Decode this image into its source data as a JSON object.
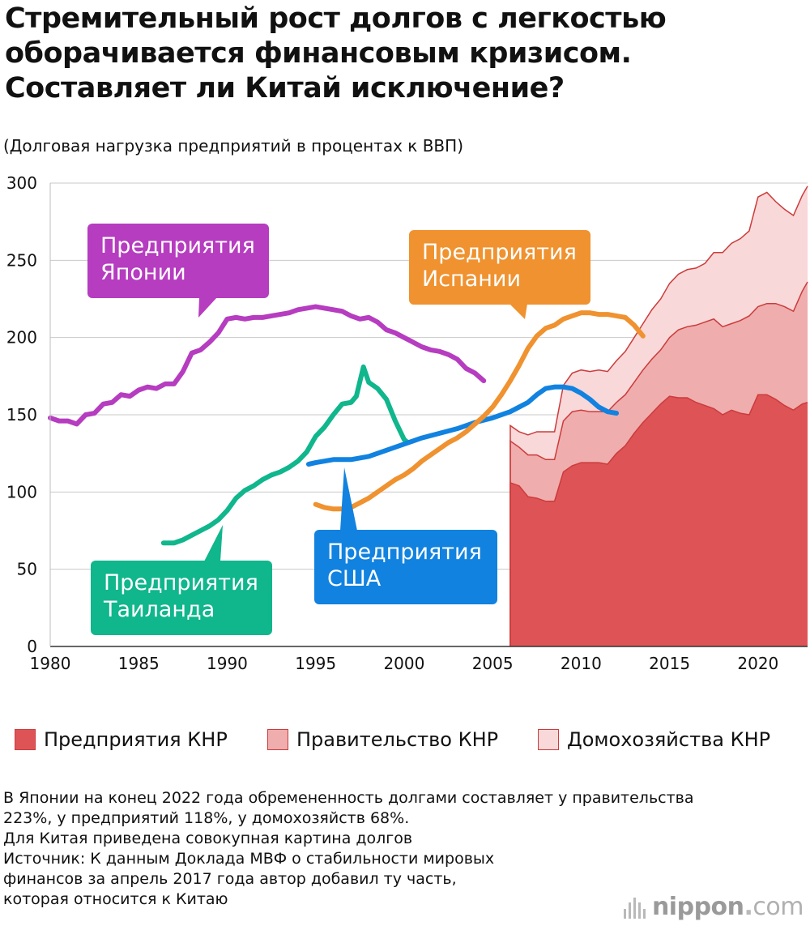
{
  "header": {
    "title_lines": [
      "Стремительный рост долгов с легкостью",
      "оборачивается финансовым кризисом.",
      "Составляет ли Китай исключение?"
    ],
    "subtitle": "(Долговая нагрузка предприятий в процентах к ВВП)"
  },
  "chart_data": {
    "type": "line",
    "title": "Стремительный рост долгов с легкостью оборачивается финансовым кризисом. Составляет ли Китай исключение?",
    "ylabel": "(Долговая нагрузка предприятий в процентах к ВВП)",
    "xlabel": "",
    "xlim": [
      1980,
      2022.8
    ],
    "ylim": [
      0,
      300
    ],
    "grid": true,
    "x_ticks": [
      "1980",
      "1985",
      "1990",
      "1995",
      "2000",
      "2005",
      "2010",
      "2015",
      "2020"
    ],
    "y_ticks": [
      "0",
      "50",
      "100",
      "150",
      "200",
      "250",
      "300"
    ],
    "series": [
      {
        "name": "Предприятия Японии",
        "label_lines": [
          "Предприятия",
          "Японии"
        ],
        "color": "#b63cc0",
        "points": [
          [
            1980.0,
            148
          ],
          [
            1980.5,
            146
          ],
          [
            1981.0,
            146
          ],
          [
            1981.5,
            144
          ],
          [
            1982.0,
            150
          ],
          [
            1982.5,
            151
          ],
          [
            1983.0,
            157
          ],
          [
            1983.5,
            158
          ],
          [
            1984.0,
            163
          ],
          [
            1984.5,
            162
          ],
          [
            1985.0,
            166
          ],
          [
            1985.5,
            168
          ],
          [
            1986.0,
            167
          ],
          [
            1986.5,
            170
          ],
          [
            1987.0,
            170
          ],
          [
            1987.5,
            178
          ],
          [
            1988.0,
            190
          ],
          [
            1988.5,
            192
          ],
          [
            1989.0,
            197
          ],
          [
            1989.5,
            203
          ],
          [
            1990.0,
            212
          ],
          [
            1990.5,
            213
          ],
          [
            1991.0,
            212
          ],
          [
            1991.5,
            213
          ],
          [
            1992.0,
            213
          ],
          [
            1992.5,
            214
          ],
          [
            1993.0,
            215
          ],
          [
            1993.5,
            216
          ],
          [
            1994.0,
            218
          ],
          [
            1994.5,
            219
          ],
          [
            1995.0,
            220
          ],
          [
            1995.5,
            219
          ],
          [
            1996.0,
            218
          ],
          [
            1996.5,
            217
          ],
          [
            1997.0,
            214
          ],
          [
            1997.5,
            212
          ],
          [
            1998.0,
            213
          ],
          [
            1998.5,
            210
          ],
          [
            1999.0,
            205
          ],
          [
            1999.5,
            203
          ],
          [
            2000.0,
            200
          ],
          [
            2000.5,
            197
          ],
          [
            2001.0,
            194
          ],
          [
            2001.5,
            192
          ],
          [
            2002.0,
            191
          ],
          [
            2002.5,
            189
          ],
          [
            2003.0,
            186
          ],
          [
            2003.5,
            180
          ],
          [
            2004.0,
            177
          ],
          [
            2004.5,
            172
          ]
        ]
      },
      {
        "name": "Предприятия Таиланда",
        "label_lines": [
          "Предприятия",
          "Таиланда"
        ],
        "color": "#10b68c",
        "points": [
          [
            1986.4,
            67
          ],
          [
            1987.0,
            67
          ],
          [
            1987.5,
            69
          ],
          [
            1988.0,
            72
          ],
          [
            1988.5,
            75
          ],
          [
            1989.0,
            78
          ],
          [
            1989.5,
            82
          ],
          [
            1990.0,
            88
          ],
          [
            1990.5,
            96
          ],
          [
            1991.0,
            101
          ],
          [
            1991.5,
            104
          ],
          [
            1992.0,
            108
          ],
          [
            1992.5,
            111
          ],
          [
            1993.0,
            113
          ],
          [
            1993.5,
            116
          ],
          [
            1994.0,
            120
          ],
          [
            1994.5,
            126
          ],
          [
            1995.0,
            136
          ],
          [
            1995.5,
            142
          ],
          [
            1996.0,
            150
          ],
          [
            1996.5,
            157
          ],
          [
            1997.0,
            158
          ],
          [
            1997.3,
            162
          ],
          [
            1997.7,
            181
          ],
          [
            1998.0,
            171
          ],
          [
            1998.5,
            167
          ],
          [
            1999.0,
            160
          ],
          [
            1999.5,
            146
          ],
          [
            2000.0,
            134
          ],
          [
            2000.2,
            132
          ]
        ]
      },
      {
        "name": "Предприятия США",
        "label_lines": [
          "Предприятия",
          "США"
        ],
        "color": "#1182e0",
        "points": [
          [
            1994.6,
            118
          ],
          [
            1995.0,
            119
          ],
          [
            1996.0,
            121
          ],
          [
            1997.0,
            121
          ],
          [
            1998.0,
            123
          ],
          [
            1999.0,
            127
          ],
          [
            2000.0,
            131
          ],
          [
            2001.0,
            135
          ],
          [
            2002.0,
            138
          ],
          [
            2003.0,
            141
          ],
          [
            2004.0,
            145
          ],
          [
            2005.0,
            148
          ],
          [
            2006.0,
            152
          ],
          [
            2007.0,
            158
          ],
          [
            2007.5,
            163
          ],
          [
            2008.0,
            167
          ],
          [
            2008.5,
            168
          ],
          [
            2009.0,
            168
          ],
          [
            2009.5,
            167
          ],
          [
            2010.0,
            164
          ],
          [
            2010.5,
            160
          ],
          [
            2011.0,
            155
          ],
          [
            2011.5,
            152
          ],
          [
            2012.0,
            151
          ]
        ]
      },
      {
        "name": "Предприятия Испании",
        "label_lines": [
          "Предприятия",
          "Испании"
        ],
        "color": "#ef922f",
        "points": [
          [
            1995.0,
            92
          ],
          [
            1995.5,
            90
          ],
          [
            1996.0,
            89
          ],
          [
            1996.5,
            89
          ],
          [
            1997.0,
            90
          ],
          [
            1997.5,
            93
          ],
          [
            1998.0,
            96
          ],
          [
            1998.5,
            100
          ],
          [
            1999.0,
            104
          ],
          [
            1999.5,
            108
          ],
          [
            2000.0,
            111
          ],
          [
            2000.5,
            115
          ],
          [
            2001.0,
            120
          ],
          [
            2001.5,
            124
          ],
          [
            2002.0,
            128
          ],
          [
            2002.5,
            132
          ],
          [
            2003.0,
            135
          ],
          [
            2003.5,
            139
          ],
          [
            2004.0,
            144
          ],
          [
            2004.5,
            149
          ],
          [
            2005.0,
            155
          ],
          [
            2005.5,
            163
          ],
          [
            2006.0,
            172
          ],
          [
            2006.5,
            182
          ],
          [
            2007.0,
            193
          ],
          [
            2007.5,
            201
          ],
          [
            2008.0,
            206
          ],
          [
            2008.5,
            208
          ],
          [
            2009.0,
            212
          ],
          [
            2009.5,
            214
          ],
          [
            2010.0,
            216
          ],
          [
            2010.5,
            216
          ],
          [
            2011.0,
            215
          ],
          [
            2011.5,
            215
          ],
          [
            2012.0,
            214
          ],
          [
            2012.5,
            213
          ],
          [
            2013.0,
            208
          ],
          [
            2013.5,
            201
          ]
        ]
      }
    ],
    "stacked_area": {
      "x": [
        2006.0,
        2006.5,
        2007.0,
        2007.5,
        2008.0,
        2008.5,
        2009.0,
        2009.5,
        2010.0,
        2010.5,
        2011.0,
        2011.5,
        2012.0,
        2012.5,
        2013.0,
        2013.5,
        2014.0,
        2014.5,
        2015.0,
        2015.5,
        2016.0,
        2016.5,
        2017.0,
        2017.5,
        2018.0,
        2018.5,
        2019.0,
        2019.5,
        2020.0,
        2020.5,
        2021.0,
        2021.5,
        2022.0,
        2022.5,
        2022.8
      ],
      "series": [
        {
          "name": "Предприятия КНР",
          "color": "#de5456",
          "values": [
            106,
            104,
            97,
            96,
            94,
            94,
            113,
            117,
            119,
            119,
            119,
            118,
            125,
            130,
            138,
            145,
            151,
            157,
            162,
            161,
            161,
            158,
            156,
            154,
            150,
            153,
            151,
            150,
            163,
            163,
            160,
            156,
            153,
            157,
            158
          ]
        },
        {
          "name": "Правительство КНР",
          "color": "#efadae",
          "values": [
            27,
            25,
            27,
            28,
            27,
            27,
            33,
            35,
            34,
            33,
            33,
            34,
            33,
            33,
            33,
            34,
            35,
            35,
            38,
            44,
            46,
            50,
            54,
            58,
            57,
            56,
            60,
            64,
            57,
            59,
            62,
            64,
            64,
            73,
            78
          ]
        },
        {
          "name": "Домохозяйства КНР",
          "color": "#f8d8d8",
          "values": [
            10,
            10,
            13,
            15,
            18,
            18,
            23,
            25,
            26,
            26,
            27,
            26,
            27,
            28,
            29,
            30,
            32,
            33,
            35,
            36,
            37,
            37,
            38,
            43,
            48,
            52,
            53,
            55,
            71,
            72,
            66,
            63,
            62,
            62,
            62
          ]
        }
      ]
    }
  },
  "legend": {
    "items": [
      {
        "label": "Предприятия КНР",
        "color": "#de5456"
      },
      {
        "label": "Правительство КНР",
        "color": "#efadae"
      },
      {
        "label": "Домохозяйства КНР",
        "color": "#f8d8d8"
      }
    ]
  },
  "notes": {
    "lines": [
      "В Японии на конец 2022 года обремененность долгами составляет у правительства",
      "223%, у предприятий 118%, у домохозяйств 68%.",
      "Для Китая приведена совокупная картина долгов",
      "Источник: К данным Доклада МВФ о стабильности мировых",
      "финансов за апрель 2017 года автор добавил ту часть,",
      "которая относится к Китаю"
    ]
  },
  "brand": {
    "name": "nippon",
    "dot": ".",
    "suffix": "com"
  }
}
